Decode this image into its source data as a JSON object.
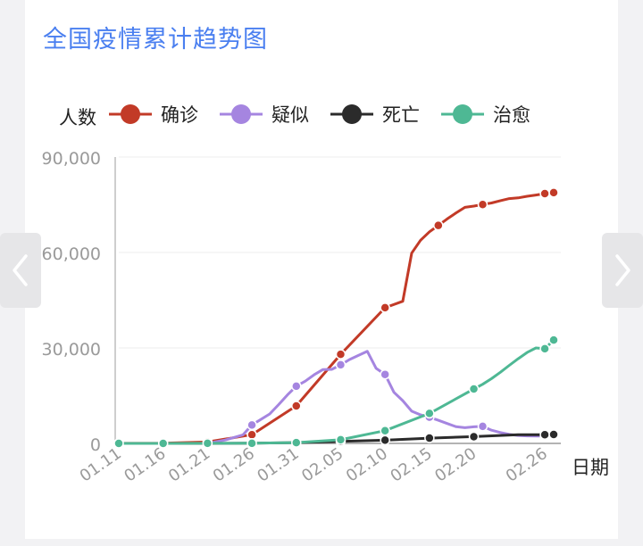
{
  "title": "全国疫情累计趋势图",
  "chart_data": {
    "type": "line",
    "ylabel": "人数",
    "xlabel": "日期",
    "ylim": [
      0,
      90000
    ],
    "yticks": [
      0,
      30000,
      60000,
      90000
    ],
    "ytick_labels": [
      "0",
      "30,000",
      "60,000",
      "90,000"
    ],
    "xtick_labels": [
      "01.11",
      "01.16",
      "01.21",
      "01.26",
      "01.31",
      "02.05",
      "02.10",
      "02.15",
      "02.20",
      "02.26"
    ],
    "legend_position": "top",
    "grid": true,
    "series": [
      {
        "name": "确诊",
        "color": "#c23a27",
        "points": [
          [
            0,
            41
          ],
          [
            5,
            45
          ],
          [
            10,
            440
          ],
          [
            15,
            2744
          ],
          [
            20,
            11791
          ],
          [
            25,
            28018
          ],
          [
            30,
            42638
          ],
          [
            32,
            44653
          ],
          [
            33,
            59804
          ],
          [
            34,
            63851
          ],
          [
            35,
            66492
          ],
          [
            36,
            68500
          ],
          [
            37,
            70548
          ],
          [
            38,
            72436
          ],
          [
            39,
            74185
          ],
          [
            40,
            74576
          ],
          [
            41,
            75077
          ],
          [
            42,
            75550
          ],
          [
            43,
            76288
          ],
          [
            44,
            76936
          ],
          [
            45,
            77150
          ],
          [
            46,
            77658
          ],
          [
            47,
            78064
          ],
          [
            48,
            78497
          ],
          [
            49,
            78824
          ]
        ],
        "markers": [
          0,
          5,
          10,
          15,
          20,
          25,
          30,
          36,
          41,
          48,
          49
        ]
      },
      {
        "name": "疑似",
        "color": "#a585e0",
        "points": [
          [
            0,
            0
          ],
          [
            10,
            0
          ],
          [
            12,
            1072
          ],
          [
            14,
            2684
          ],
          [
            15,
            5794
          ],
          [
            17,
            9239
          ],
          [
            18,
            12167
          ],
          [
            19,
            15238
          ],
          [
            20,
            17988
          ],
          [
            21,
            19544
          ],
          [
            22,
            21558
          ],
          [
            23,
            23214
          ],
          [
            24,
            23260
          ],
          [
            25,
            24702
          ],
          [
            26,
            26359
          ],
          [
            27,
            27657
          ],
          [
            28,
            28942
          ],
          [
            29,
            23589
          ],
          [
            30,
            21675
          ],
          [
            31,
            16067
          ],
          [
            32,
            13435
          ],
          [
            33,
            10109
          ],
          [
            34,
            8969
          ],
          [
            35,
            8228
          ],
          [
            36,
            7264
          ],
          [
            37,
            6242
          ],
          [
            38,
            5248
          ],
          [
            39,
            4922
          ],
          [
            40,
            5206
          ],
          [
            41,
            5365
          ],
          [
            42,
            4148
          ],
          [
            43,
            3434
          ],
          [
            44,
            2824
          ],
          [
            45,
            2491
          ],
          [
            46,
            2358
          ],
          [
            47,
            2308
          ],
          [
            48,
            2358
          ],
          [
            49,
            2308
          ]
        ],
        "markers": [
          0,
          5,
          10,
          15,
          20,
          25,
          30,
          35,
          41,
          48
        ]
      },
      {
        "name": "死亡",
        "color": "#2b2b2b",
        "points": [
          [
            0,
            1
          ],
          [
            5,
            2
          ],
          [
            10,
            9
          ],
          [
            15,
            80
          ],
          [
            20,
            259
          ],
          [
            25,
            636
          ],
          [
            30,
            1016
          ],
          [
            35,
            1665
          ],
          [
            40,
            2118
          ],
          [
            45,
            2715
          ],
          [
            48,
            2744
          ],
          [
            49,
            2788
          ]
        ],
        "markers": [
          0,
          5,
          10,
          15,
          20,
          25,
          30,
          35,
          40,
          48,
          49
        ]
      },
      {
        "name": "治愈",
        "color": "#4eb894",
        "points": [
          [
            0,
            0
          ],
          [
            5,
            3
          ],
          [
            10,
            25
          ],
          [
            15,
            51
          ],
          [
            20,
            243
          ],
          [
            25,
            1153
          ],
          [
            30,
            3996
          ],
          [
            35,
            9419
          ],
          [
            40,
            17109
          ],
          [
            41,
            18591
          ],
          [
            42,
            20349
          ],
          [
            43,
            22368
          ],
          [
            44,
            24533
          ],
          [
            45,
            26594
          ],
          [
            46,
            28564
          ],
          [
            47,
            30000
          ],
          [
            48,
            29745
          ],
          [
            49,
            32495
          ]
        ],
        "markers": [
          0,
          5,
          10,
          15,
          20,
          25,
          30,
          35,
          40,
          48,
          49
        ]
      }
    ]
  }
}
